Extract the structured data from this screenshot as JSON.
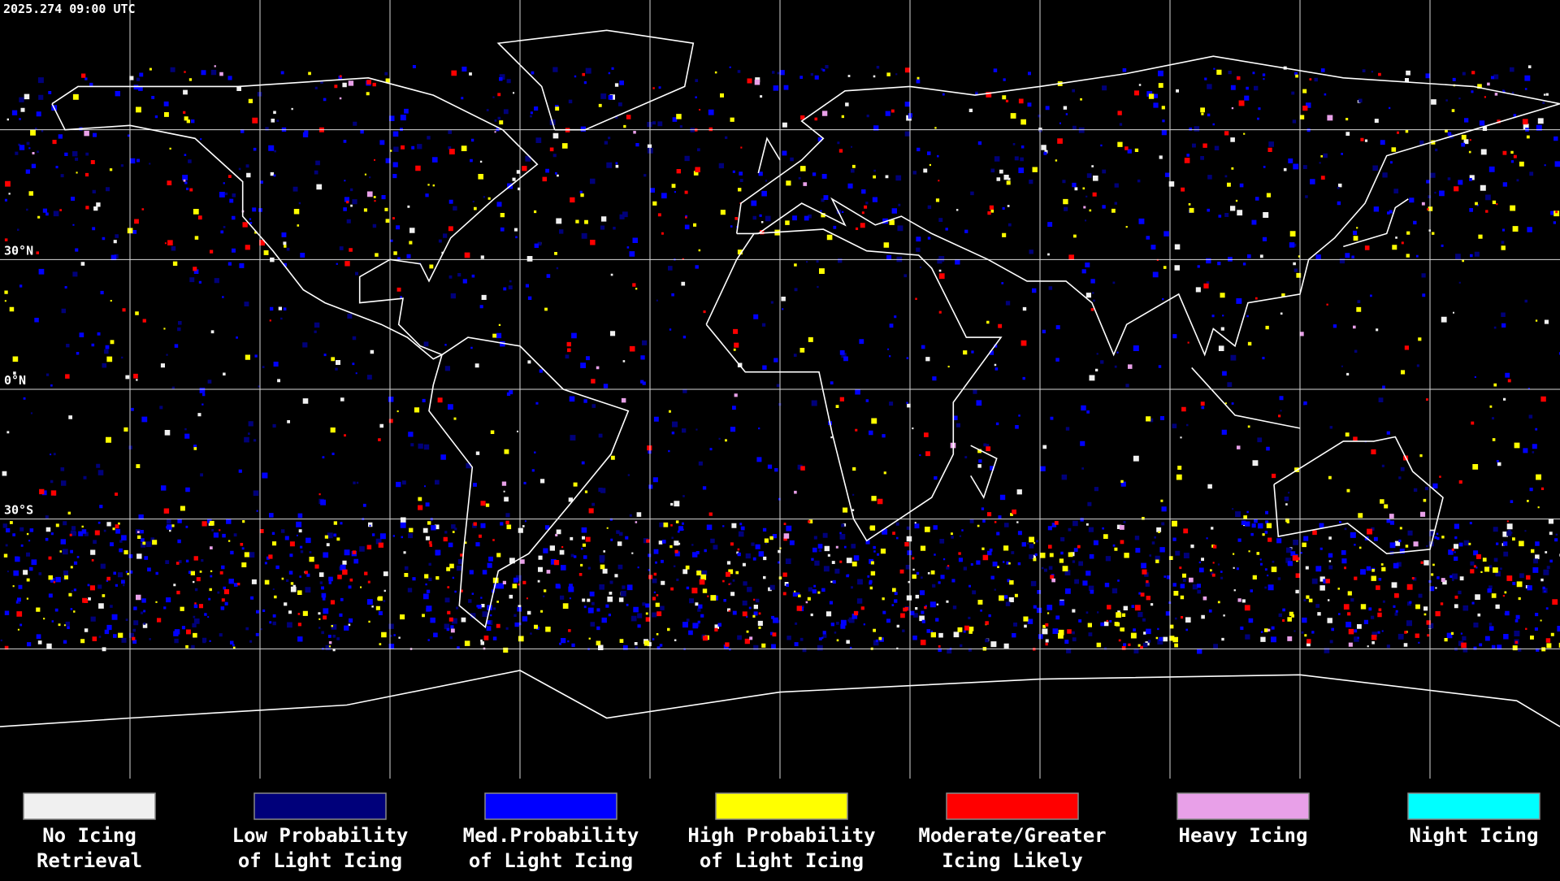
{
  "header": {
    "timestamp": "2025.274 09:00 UTC"
  },
  "map": {
    "latitude_labels": [
      "30°N",
      "0°N",
      "30°S"
    ]
  },
  "legend": {
    "items": [
      {
        "lines": [
          "No Icing",
          "Retrieval"
        ],
        "color": "#f0f0f0"
      },
      {
        "lines": [
          "Low Probability",
          "of Light Icing"
        ],
        "color": "#00007a"
      },
      {
        "lines": [
          "Med.Probability",
          "of Light Icing"
        ],
        "color": "#0000ff"
      },
      {
        "lines": [
          "High Probability",
          "of Light Icing"
        ],
        "color": "#ffff00"
      },
      {
        "lines": [
          "Moderate/Greater",
          "Icing Likely"
        ],
        "color": "#ff0000"
      },
      {
        "lines": [
          "Heavy Icing"
        ],
        "color": "#e8a0e8"
      },
      {
        "lines": [
          "Night Icing"
        ],
        "color": "#00ffff"
      }
    ]
  }
}
